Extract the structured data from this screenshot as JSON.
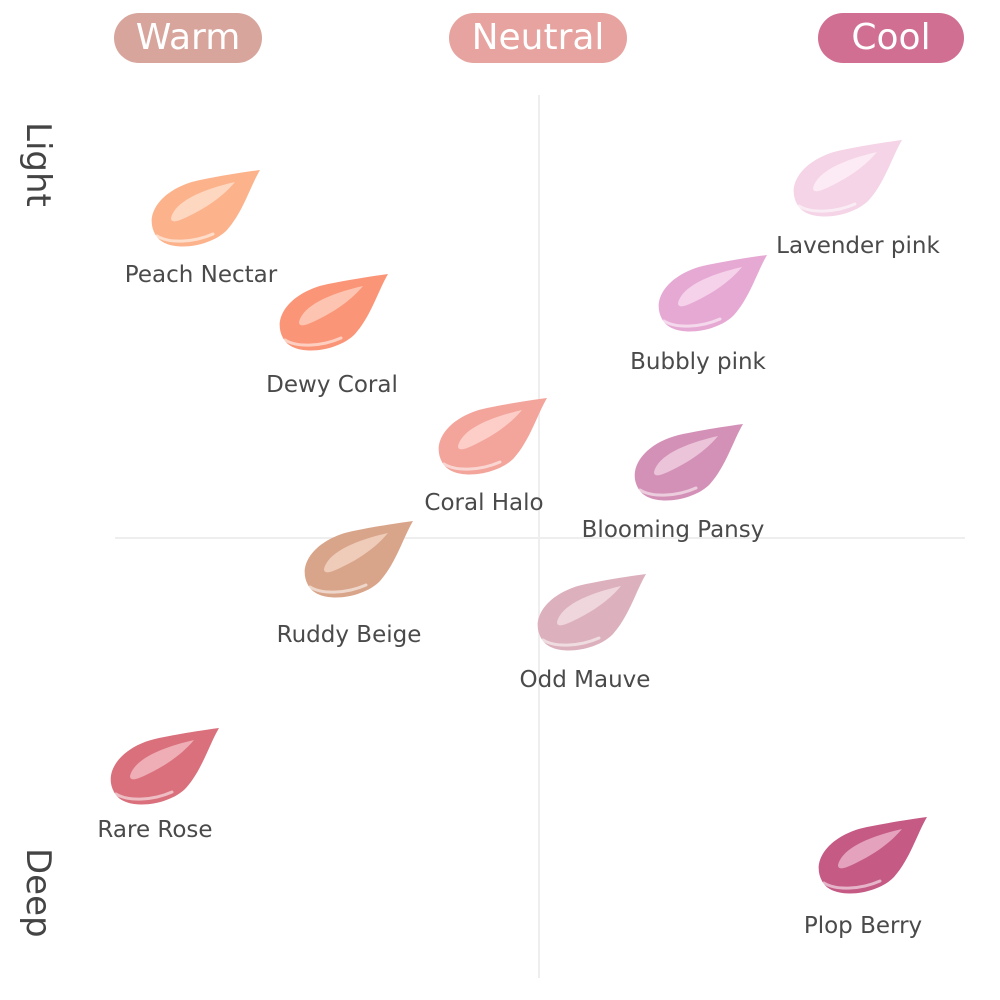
{
  "tones": [
    {
      "label": "Warm",
      "color": "#d7a59c"
    },
    {
      "label": "Neutral",
      "color": "#e6a39f"
    },
    {
      "label": "Cool",
      "color": "#d06f92"
    }
  ],
  "depth": {
    "top": "Light",
    "bottom": "Deep"
  },
  "shades": [
    {
      "name": "Peach Nectar",
      "color": "#fcb38c",
      "highlight": "#ffe3d2"
    },
    {
      "name": "Dewy Coral",
      "color": "#fb9577",
      "highlight": "#ffd4c5"
    },
    {
      "name": "Coral Halo",
      "color": "#f3a49b",
      "highlight": "#ffdcd6"
    },
    {
      "name": "Ruddy Beige",
      "color": "#d9a58a",
      "highlight": "#f5d9c8"
    },
    {
      "name": "Rare Rose",
      "color": "#d9707c",
      "highlight": "#f6c2c8"
    },
    {
      "name": "Lavender pink",
      "color": "#f4d4e6",
      "highlight": "#fff2f8"
    },
    {
      "name": "Bubbly pink",
      "color": "#e6a9d4",
      "highlight": "#f9e0f0"
    },
    {
      "name": "Blooming Pansy",
      "color": "#d491b7",
      "highlight": "#f3d5e6"
    },
    {
      "name": "Odd Mauve",
      "color": "#dcb1bd",
      "highlight": "#f5e1e7"
    },
    {
      "name": "Plop Berry",
      "color": "#c55a85",
      "highlight": "#eebbd0"
    }
  ]
}
